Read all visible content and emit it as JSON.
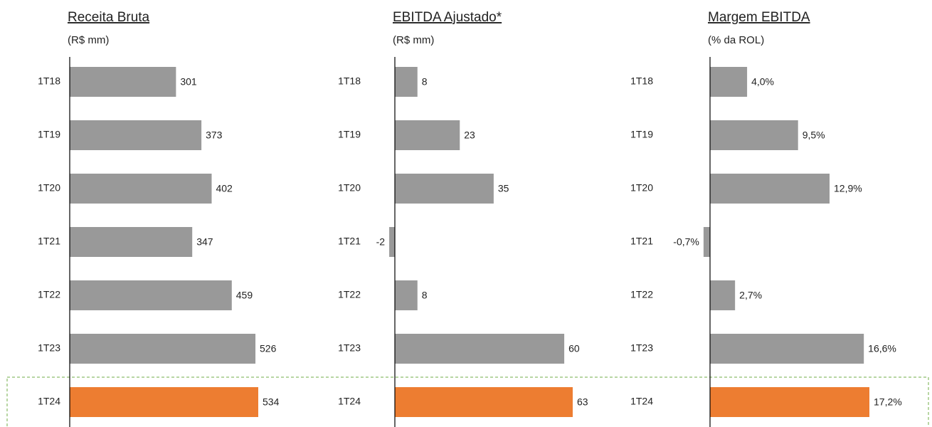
{
  "chart_data": [
    {
      "type": "bar",
      "title": "Receita Bruta",
      "subtitle": "(R$ mm)",
      "categories": [
        "1T18",
        "1T19",
        "1T20",
        "1T21",
        "1T22",
        "1T23",
        "1T24"
      ],
      "values": [
        301,
        373,
        402,
        347,
        459,
        526,
        534
      ],
      "colors": [
        "#999999",
        "#999999",
        "#999999",
        "#999999",
        "#999999",
        "#999999",
        "#ed7d31"
      ]
    },
    {
      "type": "bar",
      "title": "EBITDA Ajustado*",
      "subtitle": "(R$ mm)",
      "categories": [
        "1T18",
        "1T19",
        "1T20",
        "1T21",
        "1T22",
        "1T23",
        "1T24"
      ],
      "values": [
        8,
        23,
        35,
        -2,
        8,
        60,
        63
      ],
      "colors": [
        "#999999",
        "#999999",
        "#999999",
        "#999999",
        "#999999",
        "#999999",
        "#ed7d31"
      ]
    },
    {
      "type": "bar",
      "title": "Margem EBITDA",
      "subtitle": "(% da ROL)",
      "categories": [
        "1T18",
        "1T19",
        "1T20",
        "1T21",
        "1T22",
        "1T23",
        "1T24"
      ],
      "values": [
        4.0,
        9.5,
        12.9,
        -0.7,
        2.7,
        16.6,
        17.2
      ],
      "value_labels": [
        "4,0%",
        "9,5%",
        "12,9%",
        "-0,7%",
        "2,7%",
        "16,6%",
        "17,2%"
      ],
      "colors": [
        "#999999",
        "#999999",
        "#999999",
        "#999999",
        "#999999",
        "#999999",
        "#ed7d31"
      ]
    }
  ]
}
